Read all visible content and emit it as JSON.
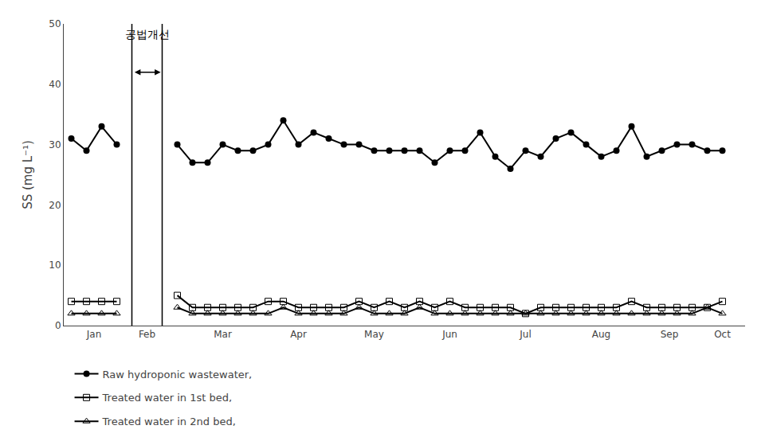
{
  "chart_data": {
    "type": "line",
    "ylabel": "SS (mg L⁻¹)",
    "xlim": [
      -0.5,
      44.5
    ],
    "xticks": [
      {
        "value": 1.5,
        "label": "Jan"
      },
      {
        "value": 5.0,
        "label": "Feb"
      },
      {
        "value": 10.0,
        "label": "Mar"
      },
      {
        "value": 15.0,
        "label": "Apr"
      },
      {
        "value": 20.0,
        "label": "May"
      },
      {
        "value": 25.0,
        "label": "Jun"
      },
      {
        "value": 30.0,
        "label": "Jul"
      },
      {
        "value": 35.0,
        "label": "Aug"
      },
      {
        "value": 39.5,
        "label": "Sep"
      },
      {
        "value": 43.0,
        "label": "Oct"
      }
    ],
    "ylim": [
      0,
      50
    ],
    "yticks": [
      0,
      10,
      20,
      30,
      40,
      50
    ],
    "grid": false,
    "legend": "bottom",
    "vlines": [
      4,
      6
    ],
    "arrow": {
      "x1": 4.1,
      "x2": 5.9,
      "y": 42
    },
    "annotations": [
      {
        "text": "공법개선",
        "x": 5.0,
        "y": 47
      }
    ],
    "series": [
      {
        "name": "Raw hydroponic wastewater,",
        "color": "#000000",
        "marker": "circle",
        "x": [
          0,
          1,
          2,
          3,
          7,
          8,
          9,
          10,
          11,
          12,
          13,
          14,
          15,
          16,
          17,
          18,
          19,
          20,
          21,
          22,
          23,
          24,
          25,
          26,
          27,
          28,
          29,
          30,
          31,
          32,
          33,
          34,
          35,
          36,
          37,
          38,
          39,
          40,
          41,
          42,
          43
        ],
        "values": [
          31,
          29,
          33,
          30,
          30,
          27,
          27,
          30,
          29,
          29,
          30,
          34,
          30,
          32,
          31,
          30,
          30,
          29,
          29,
          29,
          29,
          27,
          29,
          29,
          32,
          28,
          26,
          29,
          28,
          31,
          32,
          30,
          28,
          29,
          33,
          28,
          29,
          30,
          30,
          29,
          29
        ]
      },
      {
        "name": "Treated water in 1st bed,",
        "color": "#000000",
        "marker": "square-open",
        "x": [
          0,
          1,
          2,
          3,
          7,
          8,
          9,
          10,
          11,
          12,
          13,
          14,
          15,
          16,
          17,
          18,
          19,
          20,
          21,
          22,
          23,
          24,
          25,
          26,
          27,
          28,
          29,
          30,
          31,
          32,
          33,
          34,
          35,
          36,
          37,
          38,
          39,
          40,
          41,
          42,
          43
        ],
        "values": [
          4,
          4,
          4,
          4,
          5,
          3,
          3,
          3,
          3,
          3,
          4,
          4,
          3,
          3,
          3,
          3,
          4,
          3,
          4,
          3,
          4,
          3,
          4,
          3,
          3,
          3,
          3,
          2,
          3,
          3,
          3,
          3,
          3,
          3,
          4,
          3,
          3,
          3,
          3,
          3,
          4
        ]
      },
      {
        "name": "Treated water in 2nd bed,",
        "color": "#000000",
        "marker": "triangle-up-open",
        "x": [
          0,
          1,
          2,
          3,
          7,
          8,
          9,
          10,
          11,
          12,
          13,
          14,
          15,
          16,
          17,
          18,
          19,
          20,
          21,
          22,
          23,
          24,
          25,
          26,
          27,
          28,
          29,
          30,
          31,
          32,
          33,
          34,
          35,
          36,
          37,
          38,
          39,
          40,
          41,
          42,
          43
        ],
        "values": [
          2,
          2,
          2,
          2,
          3,
          2,
          2,
          2,
          2,
          2,
          2,
          3,
          2,
          2,
          2,
          2,
          3,
          2,
          2,
          2,
          3,
          2,
          2,
          2,
          2,
          2,
          2,
          2,
          2,
          2,
          2,
          2,
          2,
          2,
          2,
          2,
          2,
          2,
          2,
          3,
          2
        ]
      }
    ]
  }
}
